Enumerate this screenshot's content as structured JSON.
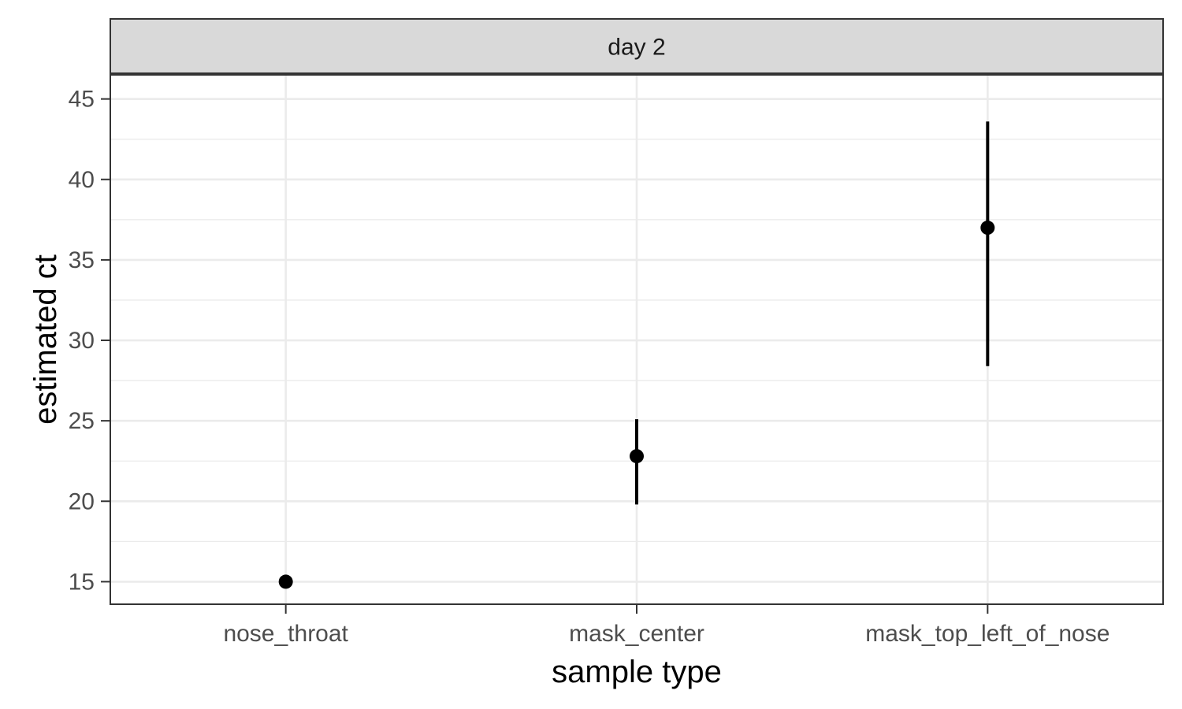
{
  "chart_data": {
    "type": "scatter",
    "facet_label": "day 2",
    "xlabel": "sample type",
    "ylabel": "estimated ct",
    "categories": [
      "nose_throat",
      "mask_center",
      "mask_top_left_of_nose"
    ],
    "y_ticks": [
      "15",
      "20",
      "25",
      "30",
      "35",
      "40",
      "45"
    ],
    "ylim": [
      13.6,
      46.5
    ],
    "grid": true,
    "points": [
      {
        "category": "nose_throat",
        "y": 15.0,
        "ymin": 15.0,
        "ymax": 15.0
      },
      {
        "category": "mask_center",
        "y": 22.8,
        "ymin": 19.8,
        "ymax": 25.1
      },
      {
        "category": "mask_top_left_of_nose",
        "y": 37.0,
        "ymin": 28.4,
        "ymax": 43.6
      }
    ],
    "colors": {
      "point": "#000000",
      "strip_fill": "#d9d9d9",
      "grid": "#ebebeb",
      "border": "#333333",
      "tick_text": "#4d4d4d"
    }
  }
}
